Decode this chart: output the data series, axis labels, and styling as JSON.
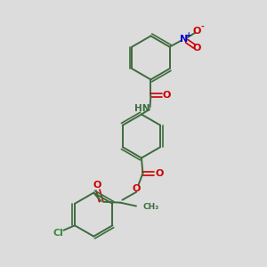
{
  "bg_color": "#dcdcdc",
  "bond_color": "#3d6b3d",
  "N_color": "#0000cc",
  "O_color": "#cc0000",
  "Cl_color": "#3d8c3d",
  "figsize": [
    3.0,
    3.0
  ],
  "dpi": 100,
  "xlim": [
    0,
    10
  ],
  "ylim": [
    0,
    10
  ]
}
